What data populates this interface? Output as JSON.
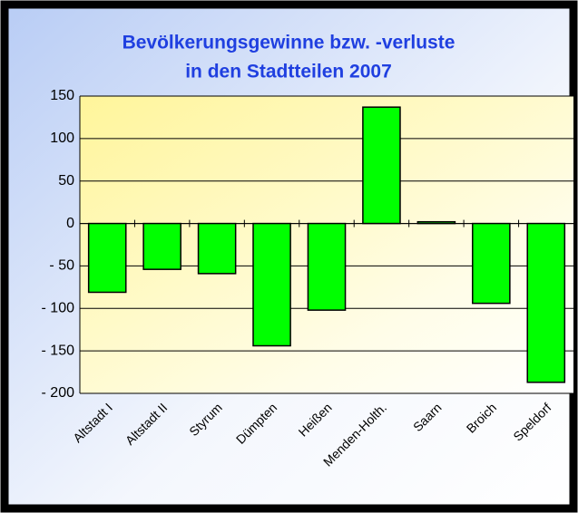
{
  "chart_data": {
    "type": "bar",
    "title": [
      "Bevölkerungsgewinne bzw. -verluste",
      "in den Stadtteilen 2007"
    ],
    "categories": [
      "Altstadt I",
      "Altstadt II",
      "Styrum",
      "Dümpten",
      "Heißen",
      "Menden-Holth.",
      "Saarn",
      "Broich",
      "Speldorf"
    ],
    "values": [
      -81,
      -54,
      -59,
      -144,
      -102,
      137,
      2,
      -94,
      -187
    ],
    "color": "#00ff00",
    "ylim": [
      -200,
      150
    ],
    "yticks": [
      {
        "value": -200,
        "label": "- 200"
      },
      {
        "value": -150,
        "label": "- 150"
      },
      {
        "value": -100,
        "label": "- 100"
      },
      {
        "value": -50,
        "label": "- 50"
      },
      0,
      50,
      100,
      150
    ],
    "grid": true
  }
}
